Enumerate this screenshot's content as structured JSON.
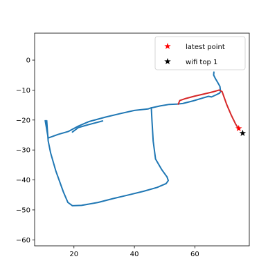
{
  "chart_data": {
    "type": "line",
    "title": "",
    "xlabel": "",
    "ylabel": "",
    "xlim": [
      7,
      78
    ],
    "ylim": [
      -62,
      9
    ],
    "xticks": [
      20,
      40,
      60
    ],
    "yticks": [
      0,
      -10,
      -20,
      -30,
      -40,
      -50,
      -60
    ],
    "grid": false,
    "legend_position": "top-right",
    "colors": {
      "track": "#1f77b4",
      "recent_track": "#d62728",
      "latest_point": "#ff0000",
      "wifi_top": "#000000"
    },
    "series": [
      {
        "kind": "line",
        "color_key": "track",
        "x": [
          10.5,
          11.5,
          14.8,
          18.2,
          21.5,
          25,
          30.5,
          35.5,
          40,
          44.5,
          45.6,
          45.8,
          46.2,
          47,
          49,
          50.8,
          51.2,
          50.5,
          47.5,
          43,
          38,
          33,
          28,
          22.5,
          19.5,
          18,
          16.5,
          14,
          12.3,
          11.5,
          11.2,
          11
        ],
        "y": [
          -20.2,
          -26,
          -24.8,
          -23.8,
          -22,
          -20.5,
          -19,
          -17.8,
          -16.8,
          -16.3,
          -15.9,
          -20,
          -27,
          -33,
          -36.5,
          -39,
          -40.2,
          -41.2,
          -42.5,
          -43.8,
          -45,
          -46.2,
          -47.5,
          -48.5,
          -48.6,
          -47.5,
          -44,
          -37,
          -31,
          -27,
          -23,
          -20.2
        ]
      },
      {
        "kind": "line",
        "color_key": "track",
        "x": [
          19.5,
          21.5,
          25,
          29.5
        ],
        "y": [
          -24,
          -22.5,
          -21.5,
          -20.3
        ]
      },
      {
        "kind": "line",
        "color_key": "track",
        "x": [
          45.8,
          48.5,
          51.5,
          54,
          56,
          59.5,
          62.5,
          64.5,
          65.5,
          67,
          68.2,
          68.5,
          68.3,
          67.5,
          66.8,
          66.2,
          66.3
        ],
        "y": [
          -15.9,
          -15.3,
          -14.8,
          -14.7,
          -14.5,
          -13.6,
          -12.7,
          -12.1,
          -12.3,
          -11.6,
          -11,
          -10.5,
          -8.8,
          -7.4,
          -6.2,
          -5,
          -4
        ]
      },
      {
        "kind": "line",
        "color_key": "recent_track",
        "x": [
          54.5,
          55,
          57,
          60,
          63,
          66,
          68,
          69,
          70.5,
          72,
          73.5,
          74.5
        ],
        "y": [
          -14.7,
          -13.5,
          -12.8,
          -12,
          -11.3,
          -10.6,
          -10,
          -10.5,
          -14.8,
          -18.3,
          -21.4,
          -23
        ]
      }
    ],
    "points": [
      {
        "label": "latest point",
        "marker": "star",
        "color_key": "latest_point",
        "x": 74.5,
        "y": -22.8
      },
      {
        "label": "wifi top 1",
        "marker": "star",
        "color_key": "wifi_top",
        "x": 75.8,
        "y": -24.4
      }
    ]
  }
}
